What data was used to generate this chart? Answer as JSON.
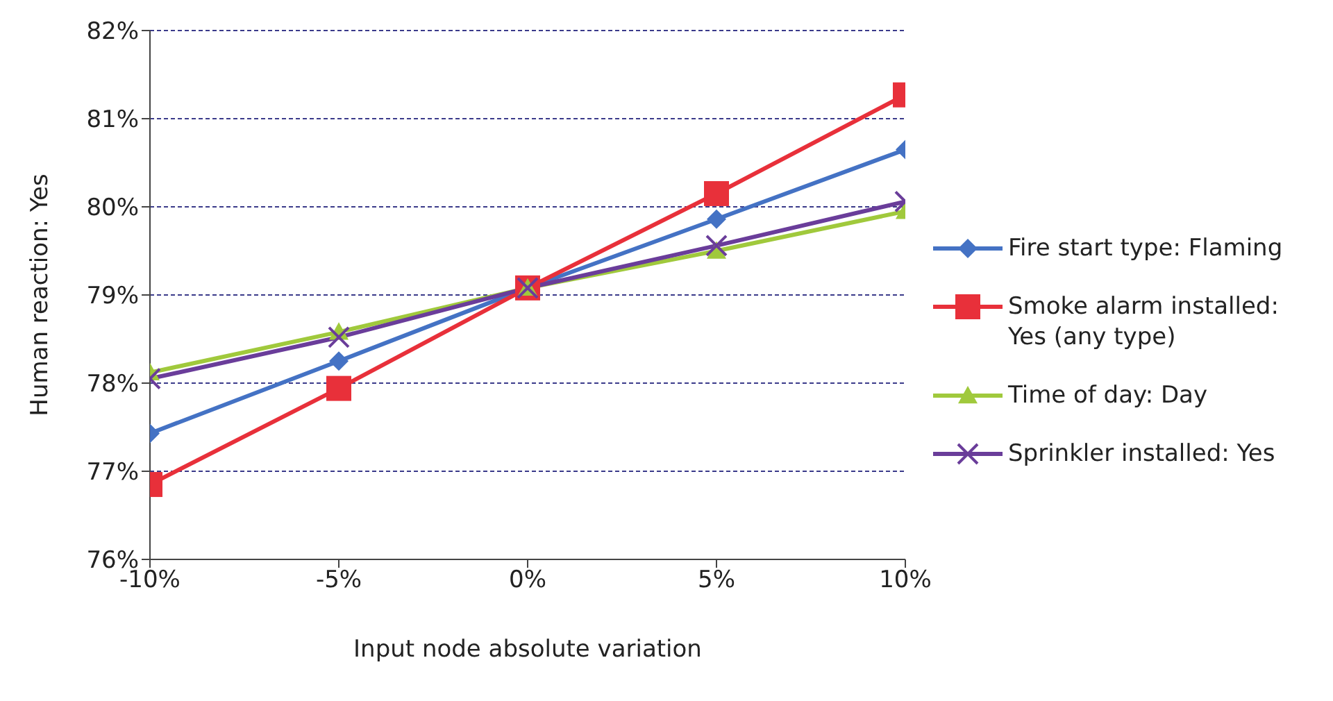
{
  "chart_data": {
    "type": "line",
    "xlabel": "Input node absolute variation",
    "ylabel": "Human reaction: Yes",
    "x": [
      -10,
      -5,
      0,
      5,
      10
    ],
    "xlim": [
      -10,
      10
    ],
    "xticks": [
      {
        "value": -10,
        "label": "-10%"
      },
      {
        "value": -5,
        "label": "-5%"
      },
      {
        "value": 0,
        "label": "0%"
      },
      {
        "value": 5,
        "label": "5%"
      },
      {
        "value": 10,
        "label": "10%"
      }
    ],
    "ylim": [
      76,
      82
    ],
    "yticks": [
      {
        "value": 76,
        "label": "76%"
      },
      {
        "value": 77,
        "label": "77%"
      },
      {
        "value": 78,
        "label": "78%"
      },
      {
        "value": 79,
        "label": "79%"
      },
      {
        "value": 80,
        "label": "80%"
      },
      {
        "value": 81,
        "label": "81%"
      },
      {
        "value": 82,
        "label": "82%"
      }
    ],
    "grid": "y",
    "legend": "right",
    "series": [
      {
        "name": "Fire start type: Flaming",
        "color": "#4472c4",
        "marker": "diamond",
        "values": [
          77.43,
          78.25,
          79.08,
          79.86,
          80.65
        ]
      },
      {
        "name": "Smoke alarm installed: Yes (any type)",
        "color": "#e8303a",
        "marker": "square",
        "values": [
          76.85,
          77.94,
          79.08,
          80.15,
          81.27
        ]
      },
      {
        "name": "Time of day: Day",
        "color": "#a0c93c",
        "marker": "triangle",
        "values": [
          78.12,
          78.58,
          79.08,
          79.5,
          79.95
        ]
      },
      {
        "name": "Sprinkler installed: Yes",
        "color": "#6a3d9a",
        "marker": "cross",
        "values": [
          78.05,
          78.52,
          79.08,
          79.56,
          80.06
        ]
      }
    ]
  }
}
